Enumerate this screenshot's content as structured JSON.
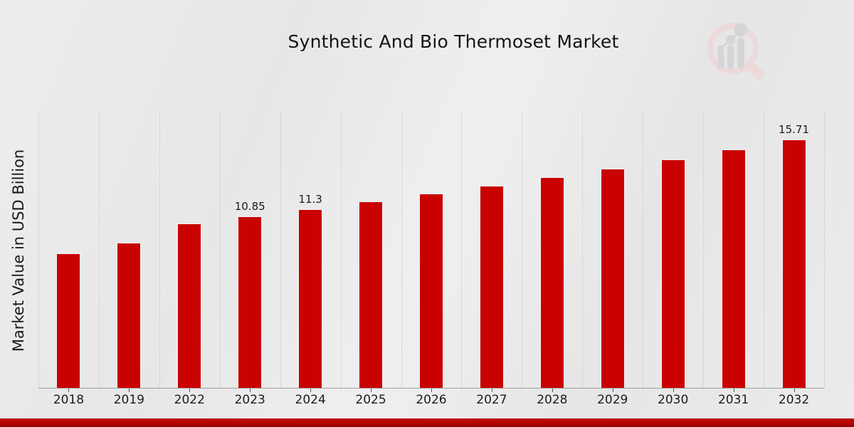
{
  "chart_data": {
    "type": "bar",
    "title": "Synthetic And Bio Thermoset Market",
    "ylabel": "Market Value in USD Billion",
    "xlabel": "",
    "categories": [
      "2018",
      "2019",
      "2022",
      "2023",
      "2024",
      "2025",
      "2026",
      "2027",
      "2028",
      "2029",
      "2030",
      "2031",
      "2032"
    ],
    "values": [
      8.5,
      9.2,
      10.41,
      10.85,
      11.3,
      11.77,
      12.27,
      12.78,
      13.32,
      13.88,
      14.46,
      15.07,
      15.71
    ],
    "bar_labels": [
      "",
      "",
      "",
      "10.85",
      "11.3",
      "",
      "",
      "",
      "",
      "",
      "",
      "",
      "15.71"
    ],
    "ylim": [
      0,
      17.37
    ],
    "grid": "vertical-dotted-between-categories",
    "legend": "none",
    "bar_color": "#c90100",
    "bar_edge_color": "#f1f1f1",
    "label_color": "#1a1a1a"
  },
  "branding": {
    "watermark": "magnifier-bar-chart-logo",
    "watermark_ring_color": "#ecd9d9",
    "watermark_bar_color": "#d5d5d8",
    "ribbon_color": "#b10505"
  }
}
